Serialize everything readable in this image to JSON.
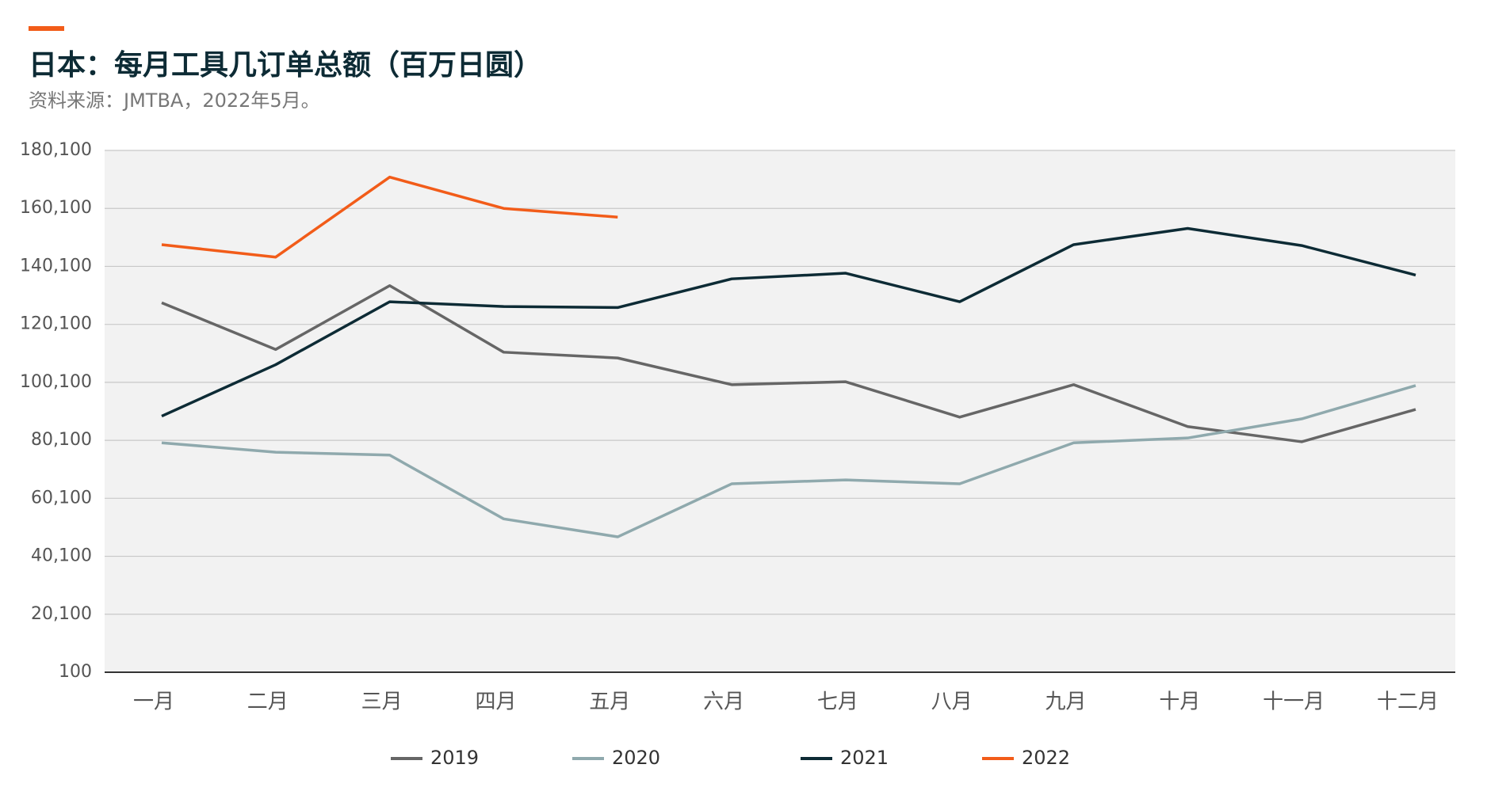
{
  "chart_data": {
    "type": "line",
    "title": "日本：每月工具几订单总额（百万日圆）",
    "subtitle": "资料来源：JMTBA，2022年5月。",
    "categories": [
      "一月",
      "二月",
      "三月",
      "四月",
      "五月",
      "六月",
      "七月",
      "八月",
      "九月",
      "十月",
      "十一月",
      "十二月"
    ],
    "series": [
      {
        "name": "2019",
        "color": "#666666",
        "values": [
          127550,
          111450,
          133460,
          110500,
          108500,
          99300,
          100300,
          88100,
          99300,
          84850,
          79600,
          90750
        ]
      },
      {
        "name": "2020",
        "color": "#8fa9ad",
        "values": [
          79250,
          76000,
          75000,
          53000,
          46800,
          65100,
          66450,
          65100,
          79250,
          80900,
          87500,
          99000
        ]
      },
      {
        "name": "2021",
        "color": "#0d2b35",
        "values": [
          88450,
          106200,
          127900,
          126250,
          125900,
          135800,
          137750,
          127900,
          147600,
          153200,
          147300,
          137100
        ]
      },
      {
        "name": "2022",
        "color": "#f25c19",
        "values": [
          147600,
          143300,
          170900,
          160100,
          157100,
          null,
          null,
          null,
          null,
          null,
          null,
          null
        ]
      }
    ],
    "ylim": [
      100,
      180100
    ],
    "yticks": [
      100,
      {
        "value": 20100,
        "label": "20,100"
      },
      {
        "value": 40100,
        "label": "40,100"
      },
      {
        "value": 60100,
        "label": "60,100"
      },
      {
        "value": 80100,
        "label": "80,100"
      },
      {
        "value": 100100,
        "label": "100,100"
      },
      {
        "value": 120100,
        "label": "120,100"
      },
      {
        "value": 140100,
        "label": "140,100"
      },
      {
        "value": 160100,
        "label": "160,100"
      },
      {
        "value": 180100,
        "label": "180,100"
      }
    ],
    "grid": true,
    "legend": "bottom"
  }
}
